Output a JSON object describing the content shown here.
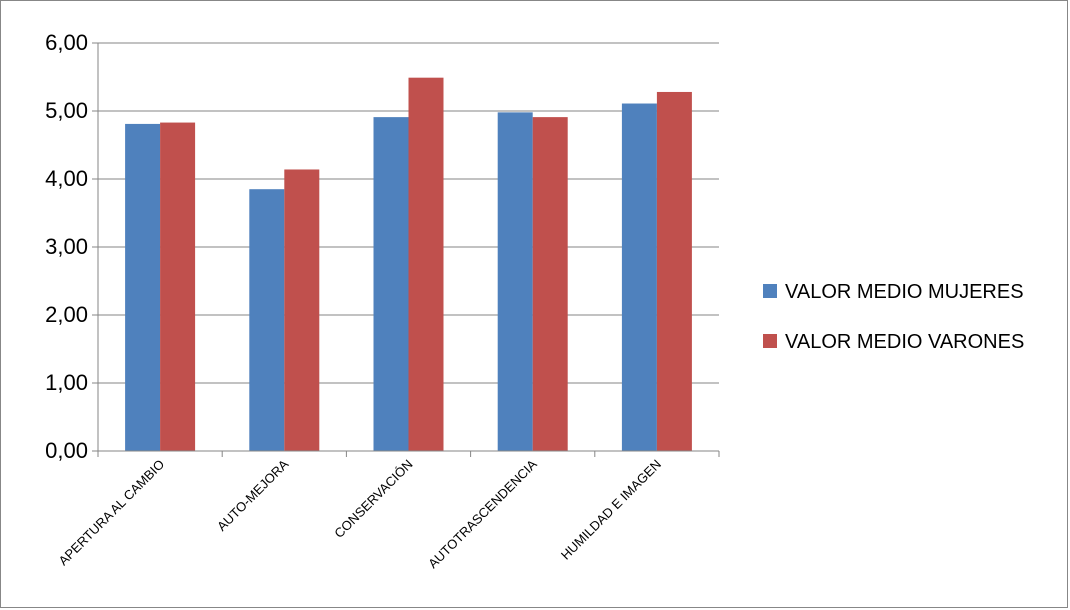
{
  "chart_data": {
    "type": "bar",
    "title": "",
    "xlabel": "",
    "ylabel": "",
    "categories": [
      "APERTURA AL CAMBIO",
      "AUTO-MEJORA",
      "CONSERVACIÓN",
      "AUTOTRASCENDENCIA",
      "HUMILDAD E IMAGEN"
    ],
    "series": [
      {
        "name": "VALOR MEDIO MUJERES",
        "color": "#4F81BD",
        "values": [
          4.81,
          3.85,
          4.91,
          4.98,
          5.11
        ]
      },
      {
        "name": "VALOR MEDIO VARONES",
        "color": "#C0504D",
        "values": [
          4.83,
          4.14,
          5.49,
          4.91,
          5.28
        ]
      }
    ],
    "ylim": [
      0,
      6
    ],
    "yticks": [
      0,
      1,
      2,
      3,
      4,
      5,
      6
    ],
    "ytick_labels": [
      "0,00",
      "1,00",
      "2,00",
      "3,00",
      "4,00",
      "5,00",
      "6,00"
    ],
    "grid": true,
    "legend_position": "right"
  }
}
